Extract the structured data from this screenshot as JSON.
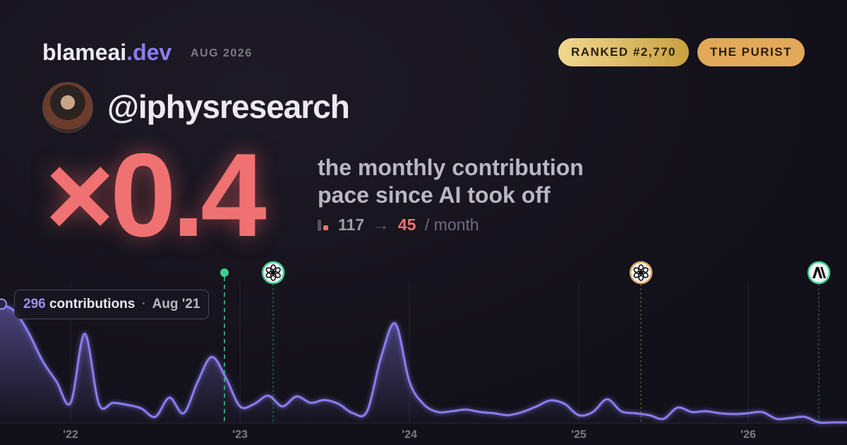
{
  "header": {
    "brand": "blameai",
    "brand_tld": ".dev",
    "date": "AUG 2026",
    "badges": [
      "RANKED #2,770",
      "THE PURIST"
    ]
  },
  "profile": {
    "handle": "@iphysresearch"
  },
  "headline": {
    "multiplier": "×0.4",
    "description": "the monthly contribution pace since AI took off",
    "before": "117",
    "arrow": "→",
    "after": "45",
    "unit": "/ month"
  },
  "chart": {
    "type": "area",
    "color": "#8b7cf0",
    "x": [
      2021.583,
      2021.667,
      2021.75,
      2021.833,
      2021.917,
      2022.0,
      2022.083,
      2022.167,
      2022.25,
      2022.333,
      2022.417,
      2022.5,
      2022.583,
      2022.667,
      2022.75,
      2022.833,
      2022.917,
      2023.0,
      2023.083,
      2023.167,
      2023.25,
      2023.333,
      2023.417,
      2023.5,
      2023.583,
      2023.667,
      2023.75,
      2023.833,
      2023.917,
      2024.0,
      2024.083,
      2024.167,
      2024.25,
      2024.333,
      2024.417,
      2024.5,
      2024.583,
      2024.667,
      2024.75,
      2024.833,
      2024.917,
      2025.0,
      2025.083,
      2025.167,
      2025.25,
      2025.333,
      2025.417,
      2025.5,
      2025.583,
      2025.667,
      2025.75,
      2025.833,
      2025.917,
      2026.0,
      2026.083,
      2026.167,
      2026.25,
      2026.333,
      2026.417,
      2026.5,
      2026.583
    ],
    "values": [
      296,
      279,
      226,
      155,
      102,
      49,
      222,
      46,
      49,
      44,
      35,
      14,
      62,
      23,
      102,
      164,
      111,
      40,
      46,
      67,
      40,
      65,
      49,
      56,
      46,
      23,
      28,
      164,
      247,
      102,
      46,
      26,
      28,
      32,
      26,
      23,
      18,
      26,
      40,
      55,
      46,
      18,
      26,
      58,
      28,
      23,
      18,
      9,
      37,
      26,
      28,
      23,
      21,
      23,
      26,
      9,
      11,
      14,
      0,
      0,
      0
    ],
    "xlim": [
      2021.583,
      2026.583
    ],
    "ylim": [
      0,
      350
    ],
    "xticks": [
      {
        "value": 2022,
        "label": "'22"
      },
      {
        "value": 2023,
        "label": "'23"
      },
      {
        "value": 2024,
        "label": "'24"
      },
      {
        "value": 2025,
        "label": "'25"
      },
      {
        "value": 2026,
        "label": "'26"
      }
    ],
    "events": [
      {
        "x": 2022.908,
        "kind": "dot",
        "color": "#3ecf8e"
      },
      {
        "x": 2023.196,
        "kind": "openai",
        "color": "#3ecf8e"
      },
      {
        "x": 2025.367,
        "kind": "openai",
        "color": "#e0a860"
      },
      {
        "x": 2026.417,
        "kind": "anthropic",
        "color": "#3ecf8e"
      }
    ],
    "tooltip": {
      "value": "296",
      "label": "contributions",
      "separator": "·",
      "date": "Aug '21"
    }
  }
}
